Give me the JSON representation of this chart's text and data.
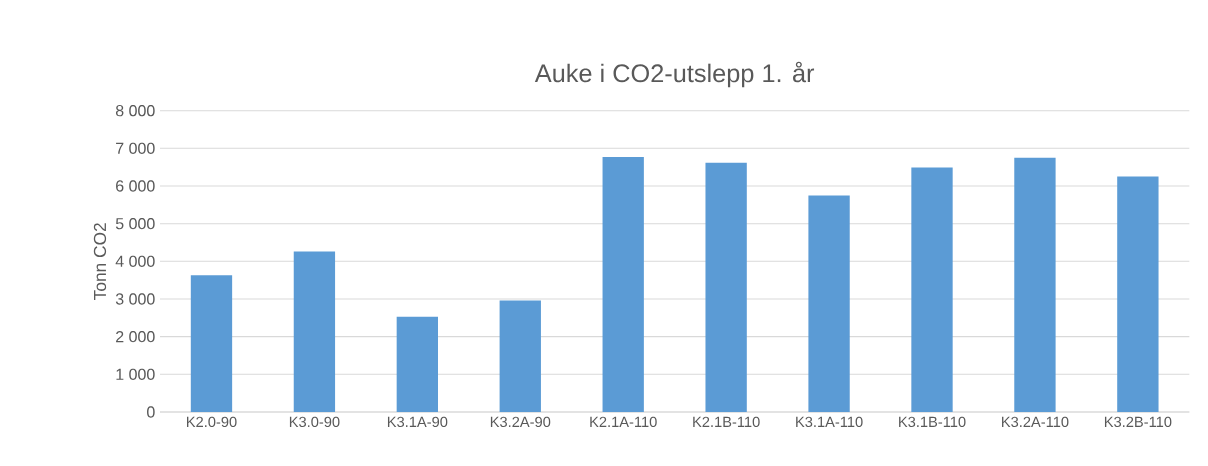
{
  "chart_data": {
    "type": "bar",
    "title": "Auke i CO2-utslepp 1. år",
    "ylabel": "Tonn CO2",
    "categories": [
      "K2.0-90",
      "K3.0-90",
      "K3.1A-90",
      "K3.2A-90",
      "K2.1A-110",
      "K2.1B-110",
      "K3.1A-110",
      "K3.1B-110",
      "K3.2A-110",
      "K3.2B-110"
    ],
    "values": [
      3630,
      4260,
      2530,
      2960,
      6770,
      6620,
      5750,
      6490,
      6750,
      6250
    ],
    "color": "#5b9bd5",
    "ylim": [
      0,
      8000
    ],
    "yticks": [
      0,
      {
        "value": 1000,
        "label": "1 000"
      },
      {
        "value": 2000,
        "label": "2 000"
      },
      {
        "value": 3000,
        "label": "3 000"
      },
      {
        "value": 4000,
        "label": "4 000"
      },
      {
        "value": 5000,
        "label": "5 000"
      },
      {
        "value": 6000,
        "label": "6 000"
      },
      {
        "value": 7000,
        "label": "7 000"
      },
      {
        "value": 8000,
        "label": "8 000"
      }
    ],
    "grid": "y"
  }
}
